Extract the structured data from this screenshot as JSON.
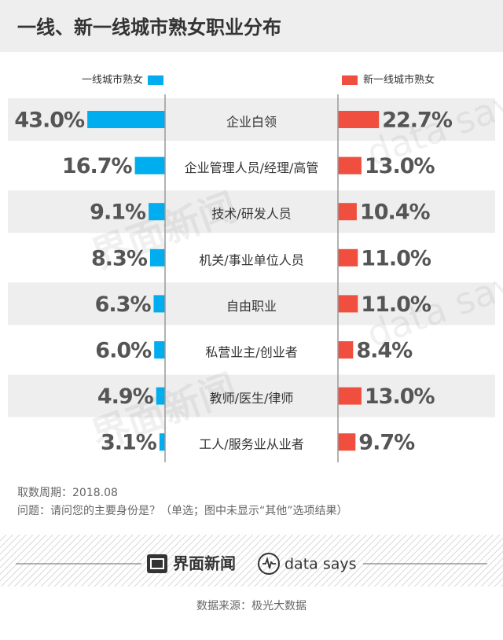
{
  "chart_data": {
    "type": "bar",
    "title": "一线、新一线城市熟女职业分布",
    "categories": [
      "企业白领",
      "企业管理人员/经理/高管",
      "技术/研发人员",
      "机关/事业单位人员",
      "自由职业",
      "私营业主/创业者",
      "教师/医生/律师",
      "工人/服务业从业者"
    ],
    "series": [
      {
        "name": "一线城市熟女",
        "color": "#00aeef",
        "side": "left",
        "values": [
          43.0,
          16.7,
          9.1,
          8.3,
          6.3,
          6.0,
          4.9,
          3.1
        ],
        "value_labels": [
          "43.0%",
          "16.7%",
          "9.1%",
          "8.3%",
          "6.3%",
          "6.0%",
          "4.9%",
          "3.1%"
        ]
      },
      {
        "name": "新一线城市熟女",
        "color": "#f04e3e",
        "side": "right",
        "values": [
          22.7,
          13.0,
          10.4,
          11.0,
          11.0,
          8.4,
          13.0,
          9.7
        ],
        "value_labels": [
          "22.7%",
          "13.0%",
          "10.4%",
          "11.0%",
          "11.0%",
          "8.4%",
          "13.0%",
          "9.7%"
        ]
      }
    ],
    "notes": [
      "取数周期：2018.08",
      "问题：请问您的主要身份是？（单选；图中未显示“其他”选项结果）"
    ],
    "brand": "界面新闻",
    "brand2": "data says",
    "source": "数据来源：极光大数据"
  }
}
